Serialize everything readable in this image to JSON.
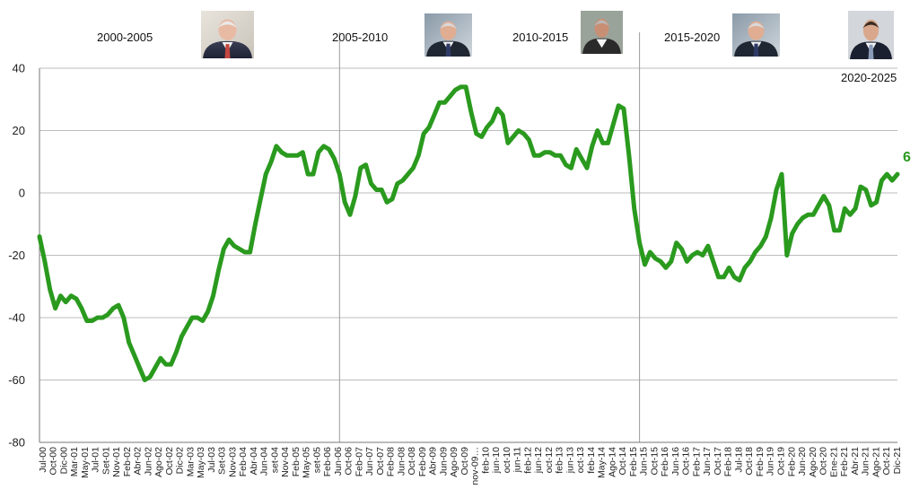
{
  "chart_data": {
    "type": "line",
    "title": "",
    "xlabel": "",
    "ylabel": "",
    "ylim": [
      -80,
      40
    ],
    "yticks": [
      -80,
      -60,
      -40,
      -20,
      0,
      20,
      40
    ],
    "grid": true,
    "line_color": "#2a9a1e",
    "end_value_label": "6",
    "periods": [
      {
        "label": "2000-2005",
        "portrait": "president-1-portrait",
        "start_index": 0
      },
      {
        "label": "2005-2010",
        "portrait": "president-2-portrait",
        "start_index": 57
      },
      {
        "label": "2010-2015",
        "portrait": "president-3-portrait",
        "start_index": 114
      },
      {
        "label": "2015-2020",
        "portrait": "president-2-portrait",
        "start_index": 174
      },
      {
        "label": "2020-2025",
        "portrait": "president-4-portrait",
        "start_index": 234
      }
    ],
    "x_tick_labels": [
      "Jul-00",
      "Oct-00",
      "Dic-00",
      "Mar-01",
      "May-01",
      "Jul-01",
      "Set-01",
      "Nov-01",
      "Feb-02",
      "Abr-02",
      "Jun-02",
      "Ago-02",
      "Oct-02",
      "Dic-02",
      "Mar-03",
      "May-03",
      "Jul-03",
      "Set-03",
      "Nov-03",
      "Feb-04",
      "Abr-04",
      "Jun-04",
      "set-04",
      "Nov-04",
      "Feb-05",
      "May-05",
      "set-05",
      "Feb-06",
      "Jun-06",
      "Oct-06",
      "Feb-07",
      "Jun-07",
      "Oct-07",
      "Feb-08",
      "Jun-08",
      "Oct-08",
      "Feb-09",
      "Abr-09",
      "Jun-09",
      "Ago-09",
      "Oct-09",
      "nov-09…",
      "feb-10",
      "jun-10",
      "oct-10",
      "jun-11",
      "feb-12",
      "jun-12",
      "oct-12",
      "feb-13",
      "jun-13",
      "oct-13",
      "feb-14",
      "May-14",
      "Ago-14",
      "Oct-14",
      "Feb-15",
      "Jun-15",
      "Oct-15",
      "Feb-16",
      "Jun-16",
      "Oct-16",
      "Feb-17",
      "Jun-17",
      "Oct-17",
      "Feb-18",
      "Jul-18",
      "Oct-18",
      "Feb-19",
      "Jun-19",
      "Oct-19",
      "Feb-20",
      "Jun-20",
      "Ago-20",
      "Oct-20",
      "Ene-21",
      "Feb-21",
      "Abr-21",
      "Jun-21",
      "Ago-21",
      "Oct-21",
      "Dic-21"
    ],
    "series": [
      {
        "values": [
          -14,
          -22,
          -31,
          -37,
          -33,
          -35,
          -33,
          -34,
          -37,
          -41,
          -41,
          -40,
          -40,
          -39,
          -37,
          -36,
          -40,
          -48,
          -52,
          -56,
          -60,
          -59,
          -56,
          -53,
          -55,
          -55,
          -51,
          -46,
          -43,
          -40,
          -40,
          -41,
          -38,
          -33,
          -25,
          -18,
          -15,
          -17,
          -18,
          -19,
          -19,
          -10,
          -2,
          6,
          10,
          15,
          13,
          12,
          12,
          12,
          13,
          6,
          6,
          13,
          15,
          14,
          11,
          6,
          -3,
          -7,
          -1,
          8,
          9,
          3,
          1,
          1,
          -3,
          -2,
          3,
          4,
          6,
          8,
          12,
          19,
          21,
          25,
          29,
          29,
          31,
          33,
          34,
          34,
          26,
          19,
          18,
          21,
          23,
          27,
          25,
          16,
          18,
          20,
          19,
          17,
          12,
          12,
          13,
          13,
          12,
          12,
          9,
          8,
          14,
          11,
          8,
          15,
          20,
          16,
          16,
          22,
          28,
          27,
          12,
          -5,
          -16,
          -23,
          -19,
          -21,
          -22,
          -24,
          -22,
          -16,
          -18,
          -22,
          -20,
          -19,
          -20,
          -17,
          -22,
          -27,
          -27,
          -24,
          -27,
          -28,
          -24,
          -22,
          -19,
          -17,
          -14,
          -8,
          1,
          6,
          -20,
          -13,
          -10,
          -8,
          -7,
          -7,
          -4,
          -1,
          -4,
          -12,
          -12,
          -5,
          -7,
          -5,
          2,
          1,
          -4,
          -3,
          4,
          6,
          4,
          6
        ]
      }
    ]
  }
}
